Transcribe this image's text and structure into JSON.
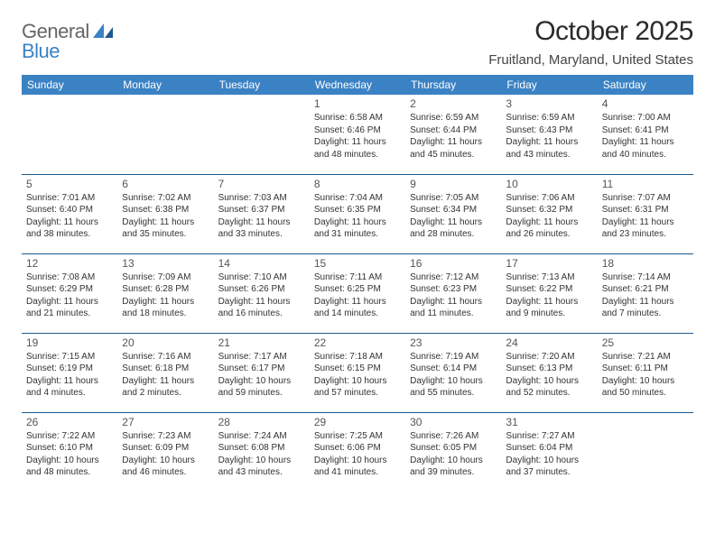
{
  "brand": {
    "word1": "General",
    "word2": "Blue"
  },
  "title": "October 2025",
  "location": "Fruitland, Maryland, United States",
  "colors": {
    "accent": "#3b82c4",
    "dark_blue": "#1e5a8e",
    "background": "#ffffff",
    "text": "#333333"
  },
  "weekdays": [
    "Sunday",
    "Monday",
    "Tuesday",
    "Wednesday",
    "Thursday",
    "Friday",
    "Saturday"
  ],
  "weeks": [
    [
      null,
      null,
      null,
      {
        "n": "1",
        "sr": "Sunrise: 6:58 AM",
        "ss": "Sunset: 6:46 PM",
        "d1": "Daylight: 11 hours",
        "d2": "and 48 minutes."
      },
      {
        "n": "2",
        "sr": "Sunrise: 6:59 AM",
        "ss": "Sunset: 6:44 PM",
        "d1": "Daylight: 11 hours",
        "d2": "and 45 minutes."
      },
      {
        "n": "3",
        "sr": "Sunrise: 6:59 AM",
        "ss": "Sunset: 6:43 PM",
        "d1": "Daylight: 11 hours",
        "d2": "and 43 minutes."
      },
      {
        "n": "4",
        "sr": "Sunrise: 7:00 AM",
        "ss": "Sunset: 6:41 PM",
        "d1": "Daylight: 11 hours",
        "d2": "and 40 minutes."
      }
    ],
    [
      {
        "n": "5",
        "sr": "Sunrise: 7:01 AM",
        "ss": "Sunset: 6:40 PM",
        "d1": "Daylight: 11 hours",
        "d2": "and 38 minutes."
      },
      {
        "n": "6",
        "sr": "Sunrise: 7:02 AM",
        "ss": "Sunset: 6:38 PM",
        "d1": "Daylight: 11 hours",
        "d2": "and 35 minutes."
      },
      {
        "n": "7",
        "sr": "Sunrise: 7:03 AM",
        "ss": "Sunset: 6:37 PM",
        "d1": "Daylight: 11 hours",
        "d2": "and 33 minutes."
      },
      {
        "n": "8",
        "sr": "Sunrise: 7:04 AM",
        "ss": "Sunset: 6:35 PM",
        "d1": "Daylight: 11 hours",
        "d2": "and 31 minutes."
      },
      {
        "n": "9",
        "sr": "Sunrise: 7:05 AM",
        "ss": "Sunset: 6:34 PM",
        "d1": "Daylight: 11 hours",
        "d2": "and 28 minutes."
      },
      {
        "n": "10",
        "sr": "Sunrise: 7:06 AM",
        "ss": "Sunset: 6:32 PM",
        "d1": "Daylight: 11 hours",
        "d2": "and 26 minutes."
      },
      {
        "n": "11",
        "sr": "Sunrise: 7:07 AM",
        "ss": "Sunset: 6:31 PM",
        "d1": "Daylight: 11 hours",
        "d2": "and 23 minutes."
      }
    ],
    [
      {
        "n": "12",
        "sr": "Sunrise: 7:08 AM",
        "ss": "Sunset: 6:29 PM",
        "d1": "Daylight: 11 hours",
        "d2": "and 21 minutes."
      },
      {
        "n": "13",
        "sr": "Sunrise: 7:09 AM",
        "ss": "Sunset: 6:28 PM",
        "d1": "Daylight: 11 hours",
        "d2": "and 18 minutes."
      },
      {
        "n": "14",
        "sr": "Sunrise: 7:10 AM",
        "ss": "Sunset: 6:26 PM",
        "d1": "Daylight: 11 hours",
        "d2": "and 16 minutes."
      },
      {
        "n": "15",
        "sr": "Sunrise: 7:11 AM",
        "ss": "Sunset: 6:25 PM",
        "d1": "Daylight: 11 hours",
        "d2": "and 14 minutes."
      },
      {
        "n": "16",
        "sr": "Sunrise: 7:12 AM",
        "ss": "Sunset: 6:23 PM",
        "d1": "Daylight: 11 hours",
        "d2": "and 11 minutes."
      },
      {
        "n": "17",
        "sr": "Sunrise: 7:13 AM",
        "ss": "Sunset: 6:22 PM",
        "d1": "Daylight: 11 hours",
        "d2": "and 9 minutes."
      },
      {
        "n": "18",
        "sr": "Sunrise: 7:14 AM",
        "ss": "Sunset: 6:21 PM",
        "d1": "Daylight: 11 hours",
        "d2": "and 7 minutes."
      }
    ],
    [
      {
        "n": "19",
        "sr": "Sunrise: 7:15 AM",
        "ss": "Sunset: 6:19 PM",
        "d1": "Daylight: 11 hours",
        "d2": "and 4 minutes."
      },
      {
        "n": "20",
        "sr": "Sunrise: 7:16 AM",
        "ss": "Sunset: 6:18 PM",
        "d1": "Daylight: 11 hours",
        "d2": "and 2 minutes."
      },
      {
        "n": "21",
        "sr": "Sunrise: 7:17 AM",
        "ss": "Sunset: 6:17 PM",
        "d1": "Daylight: 10 hours",
        "d2": "and 59 minutes."
      },
      {
        "n": "22",
        "sr": "Sunrise: 7:18 AM",
        "ss": "Sunset: 6:15 PM",
        "d1": "Daylight: 10 hours",
        "d2": "and 57 minutes."
      },
      {
        "n": "23",
        "sr": "Sunrise: 7:19 AM",
        "ss": "Sunset: 6:14 PM",
        "d1": "Daylight: 10 hours",
        "d2": "and 55 minutes."
      },
      {
        "n": "24",
        "sr": "Sunrise: 7:20 AM",
        "ss": "Sunset: 6:13 PM",
        "d1": "Daylight: 10 hours",
        "d2": "and 52 minutes."
      },
      {
        "n": "25",
        "sr": "Sunrise: 7:21 AM",
        "ss": "Sunset: 6:11 PM",
        "d1": "Daylight: 10 hours",
        "d2": "and 50 minutes."
      }
    ],
    [
      {
        "n": "26",
        "sr": "Sunrise: 7:22 AM",
        "ss": "Sunset: 6:10 PM",
        "d1": "Daylight: 10 hours",
        "d2": "and 48 minutes."
      },
      {
        "n": "27",
        "sr": "Sunrise: 7:23 AM",
        "ss": "Sunset: 6:09 PM",
        "d1": "Daylight: 10 hours",
        "d2": "and 46 minutes."
      },
      {
        "n": "28",
        "sr": "Sunrise: 7:24 AM",
        "ss": "Sunset: 6:08 PM",
        "d1": "Daylight: 10 hours",
        "d2": "and 43 minutes."
      },
      {
        "n": "29",
        "sr": "Sunrise: 7:25 AM",
        "ss": "Sunset: 6:06 PM",
        "d1": "Daylight: 10 hours",
        "d2": "and 41 minutes."
      },
      {
        "n": "30",
        "sr": "Sunrise: 7:26 AM",
        "ss": "Sunset: 6:05 PM",
        "d1": "Daylight: 10 hours",
        "d2": "and 39 minutes."
      },
      {
        "n": "31",
        "sr": "Sunrise: 7:27 AM",
        "ss": "Sunset: 6:04 PM",
        "d1": "Daylight: 10 hours",
        "d2": "and 37 minutes."
      },
      null
    ]
  ]
}
